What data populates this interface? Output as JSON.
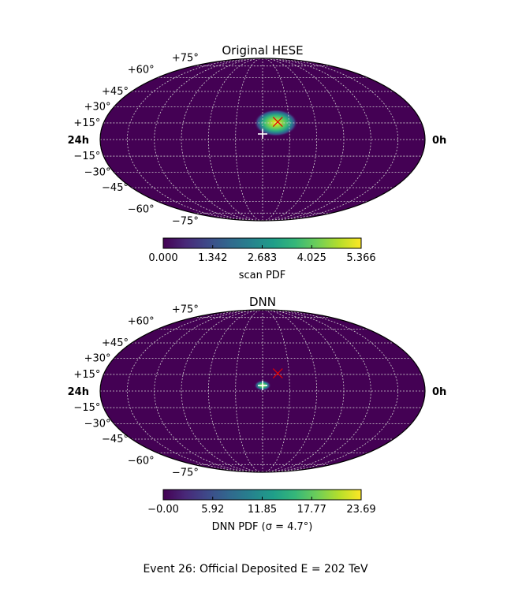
{
  "figure": {
    "caption": "Event 26:  Official Deposited $E = 202\\,$TeV",
    "caption_display": "Event 26:  Official Deposited E = 202 TeV"
  },
  "colors": {
    "viridis": [
      "#440154",
      "#482878",
      "#3e4989",
      "#31688e",
      "#26828e",
      "#1f9e89",
      "#35b779",
      "#6ece58",
      "#b5de2b",
      "#fde725"
    ],
    "grid": "#d0d0d0",
    "reco_marker": "#ffffff",
    "true_marker": "#e00000",
    "frame": "#000000"
  },
  "chart_data": [
    {
      "type": "heatmap",
      "projection": "mollweide",
      "title": "Original HESE",
      "ra_left_label": "24h",
      "ra_right_label": "0h",
      "dec_tick_labels": [
        "+75°",
        "+60°",
        "+45°",
        "+30°",
        "+15°",
        "−15°",
        "−30°",
        "−45°",
        "−60°",
        "−75°"
      ],
      "dec_tick_values": [
        75,
        60,
        45,
        30,
        15,
        -15,
        -30,
        -45,
        -60,
        -75
      ],
      "grid": true,
      "hotspot": {
        "ra_hours": 11.0,
        "dec_deg": 15.0,
        "width_deg": 12.0,
        "peak": 5.366
      },
      "markers": [
        {
          "kind": "reco",
          "symbol": "+",
          "ra_hours": 12.0,
          "dec_deg": 5.0,
          "color": "#ffffff"
        },
        {
          "kind": "true",
          "symbol": "x",
          "ra_hours": 10.85,
          "dec_deg": 16.0,
          "color": "#e00000"
        }
      ],
      "colorbar": {
        "label": "scan PDF",
        "min": 0.0,
        "max": 5.366,
        "tick_labels": [
          "0.000",
          "1.342",
          "2.683",
          "4.025",
          "5.366"
        ]
      }
    },
    {
      "type": "heatmap",
      "projection": "mollweide",
      "title": "DNN",
      "ra_left_label": "24h",
      "ra_right_label": "0h",
      "dec_tick_labels": [
        "+75°",
        "+60°",
        "+45°",
        "+30°",
        "+15°",
        "−15°",
        "−30°",
        "−45°",
        "−60°",
        "−75°"
      ],
      "dec_tick_values": [
        75,
        60,
        45,
        30,
        15,
        -15,
        -30,
        -45,
        -60,
        -75
      ],
      "grid": true,
      "hotspot": {
        "ra_hours": 12.0,
        "dec_deg": 5.0,
        "width_deg": 4.7,
        "peak": 23.69
      },
      "markers": [
        {
          "kind": "reco",
          "symbol": "+",
          "ra_hours": 12.0,
          "dec_deg": 5.0,
          "color": "#ffffff"
        },
        {
          "kind": "true",
          "symbol": "x",
          "ra_hours": 10.85,
          "dec_deg": 16.0,
          "color": "#e00000"
        }
      ],
      "colorbar": {
        "label": "DNN PDF (σ = 4.7°)",
        "min": 0.0,
        "max": 23.69,
        "tick_labels": [
          "−0.00",
          "5.92",
          "11.85",
          "17.77",
          "23.69"
        ]
      }
    }
  ]
}
